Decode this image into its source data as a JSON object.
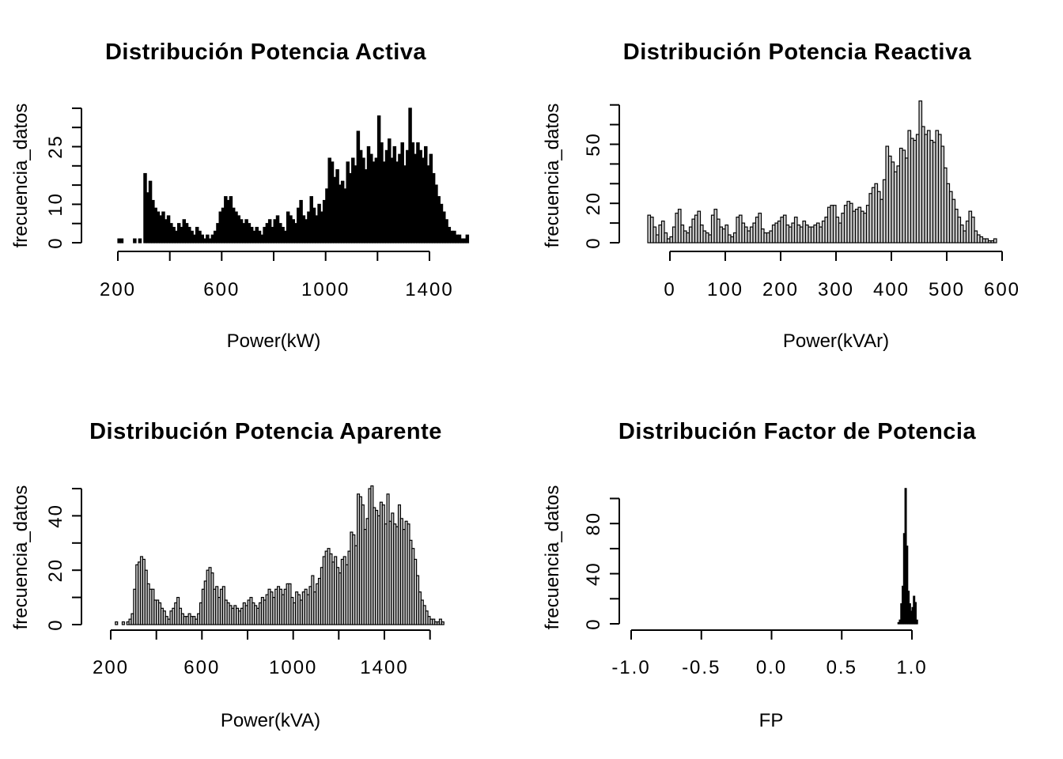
{
  "figure": {
    "background": "#ffffff",
    "text_color": "#000000",
    "layout": "2x2 grid of base-R histograms, no gridlines, no legend"
  },
  "chart_data": [
    {
      "id": "potencia-activa",
      "type": "bar",
      "subtype": "histogram",
      "title": "Distribución Potencia Activa",
      "xlabel": "Power(kW)",
      "ylabel": "frecuencia_datos",
      "bar_fill": "#000000",
      "bar_stroke": "#000000",
      "xlim": [
        200,
        1550
      ],
      "ylim": [
        0,
        35
      ],
      "grid": false,
      "legend": false,
      "x_ticks": {
        "values": [
          200,
          400,
          600,
          800,
          1000,
          1200,
          1400
        ],
        "labels": [
          "200",
          "",
          "600",
          "",
          "1000",
          "",
          "1400"
        ]
      },
      "y_ticks": {
        "values": [
          0,
          5,
          10,
          15,
          20,
          25,
          30,
          35
        ],
        "labels": [
          "0",
          "",
          "10",
          "",
          "",
          "25",
          "",
          ""
        ]
      },
      "bin_start": 200,
      "bin_width": 10,
      "counts": [
        1,
        1,
        0,
        0,
        0,
        0,
        1,
        0,
        1,
        0,
        18,
        13,
        16,
        11,
        9,
        8,
        7,
        8,
        6,
        7,
        5,
        4,
        3,
        5,
        4,
        6,
        5,
        4,
        3,
        2,
        4,
        3,
        2,
        1,
        2,
        1,
        2,
        3,
        5,
        8,
        9,
        12,
        11,
        12,
        9,
        8,
        7,
        6,
        5,
        6,
        5,
        4,
        3,
        4,
        3,
        2,
        4,
        5,
        6,
        4,
        6,
        7,
        5,
        4,
        3,
        8,
        7,
        6,
        5,
        9,
        11,
        7,
        6,
        8,
        12,
        9,
        7,
        10,
        8,
        11,
        14,
        22,
        21,
        17,
        19,
        15,
        16,
        14,
        21,
        18,
        22,
        20,
        29,
        24,
        22,
        19,
        25,
        23,
        21,
        22,
        33,
        26,
        21,
        24,
        27,
        22,
        25,
        21,
        23,
        26,
        20,
        24,
        35,
        26,
        23,
        26,
        24,
        22,
        25,
        20,
        23,
        18,
        15,
        12,
        10,
        8,
        6,
        4,
        3,
        3,
        2,
        2,
        1,
        1,
        2
      ]
    },
    {
      "id": "potencia-reactiva",
      "type": "bar",
      "subtype": "histogram",
      "title": "Distribución Potencia Reactiva",
      "xlabel": "Power(kVAr)",
      "ylabel": "frecuencia_datos",
      "bar_fill": "#d3d3d3",
      "bar_stroke": "#000000",
      "xlim": [
        -40,
        590
      ],
      "ylim": [
        0,
        72
      ],
      "grid": false,
      "legend": false,
      "x_ticks": {
        "values": [
          0,
          100,
          200,
          300,
          400,
          500,
          600
        ],
        "labels": [
          "0",
          "100",
          "200",
          "300",
          "400",
          "500",
          "600"
        ]
      },
      "y_ticks": {
        "values": [
          0,
          10,
          20,
          30,
          40,
          50,
          60,
          70
        ],
        "labels": [
          "0",
          "",
          "20",
          "",
          "",
          "50",
          "",
          ""
        ]
      },
      "bin_start": -40,
      "bin_width": 5,
      "counts": [
        14,
        13,
        8,
        4,
        9,
        11,
        5,
        2,
        3,
        8,
        15,
        17,
        9,
        6,
        5,
        8,
        12,
        14,
        16,
        9,
        6,
        5,
        4,
        14,
        17,
        12,
        8,
        7,
        9,
        4,
        3,
        5,
        13,
        14,
        10,
        8,
        6,
        8,
        10,
        13,
        15,
        7,
        5,
        5,
        6,
        9,
        10,
        11,
        13,
        14,
        9,
        8,
        10,
        13,
        9,
        8,
        11,
        9,
        8,
        8,
        9,
        10,
        8,
        11,
        13,
        18,
        19,
        19,
        13,
        10,
        15,
        19,
        21,
        20,
        16,
        17,
        18,
        16,
        15,
        19,
        25,
        28,
        30,
        26,
        22,
        32,
        49,
        44,
        41,
        36,
        39,
        48,
        47,
        43,
        57,
        53,
        52,
        55,
        72,
        59,
        55,
        57,
        52,
        51,
        57,
        55,
        49,
        38,
        30,
        26,
        22,
        17,
        13,
        9,
        6,
        11,
        16,
        13,
        6,
        4,
        3,
        2,
        2,
        1,
        1,
        2
      ]
    },
    {
      "id": "potencia-aparente",
      "type": "bar",
      "subtype": "histogram",
      "title": "Distribución Potencia Aparente",
      "xlabel": "Power(kVA)",
      "ylabel": "frecuencia_datos",
      "bar_fill": "#d3d3d3",
      "bar_stroke": "#000000",
      "xlim": [
        220,
        1680
      ],
      "ylim": [
        0,
        51
      ],
      "grid": false,
      "legend": false,
      "x_ticks": {
        "values": [
          200,
          400,
          600,
          800,
          1000,
          1200,
          1400,
          1600
        ],
        "labels": [
          "200",
          "",
          "600",
          "",
          "1000",
          "",
          "1400",
          ""
        ]
      },
      "y_ticks": {
        "values": [
          0,
          10,
          20,
          30,
          40,
          50
        ],
        "labels": [
          "0",
          "",
          "20",
          "",
          "40",
          ""
        ]
      },
      "bin_start": 220,
      "bin_width": 10,
      "counts": [
        1,
        0,
        0,
        1,
        0,
        1,
        2,
        4,
        13,
        22,
        23,
        25,
        24,
        20,
        15,
        13,
        13,
        9,
        9,
        8,
        6,
        5,
        3,
        2,
        5,
        6,
        8,
        10,
        6,
        4,
        3,
        3,
        4,
        3,
        3,
        2,
        4,
        8,
        13,
        16,
        20,
        21,
        19,
        13,
        14,
        10,
        13,
        14,
        9,
        8,
        7,
        6,
        7,
        6,
        5,
        6,
        8,
        7,
        9,
        10,
        8,
        7,
        6,
        8,
        10,
        9,
        11,
        13,
        12,
        10,
        13,
        14,
        13,
        11,
        13,
        15,
        15,
        10,
        8,
        12,
        11,
        9,
        12,
        13,
        11,
        14,
        18,
        12,
        15,
        17,
        21,
        25,
        27,
        28,
        26,
        23,
        25,
        21,
        19,
        24,
        25,
        22,
        27,
        34,
        33,
        29,
        48,
        47,
        44,
        35,
        39,
        50,
        51,
        43,
        42,
        40,
        45,
        44,
        37,
        48,
        38,
        41,
        37,
        36,
        44,
        39,
        35,
        38,
        37,
        31,
        28,
        24,
        18,
        12,
        9,
        7,
        5,
        3,
        2,
        2,
        1,
        1,
        2,
        1
      ]
    },
    {
      "id": "factor-de-potencia",
      "type": "bar",
      "subtype": "histogram",
      "title": "Distribución Factor de Potencia",
      "xlabel": "FP",
      "ylabel": "frecuencia_datos",
      "bar_fill": "#000000",
      "bar_stroke": "#000000",
      "xlim": [
        -1.0,
        1.0
      ],
      "ylim": [
        0,
        108
      ],
      "grid": false,
      "legend": false,
      "x_ticks": {
        "values": [
          -1.0,
          -0.5,
          0.0,
          0.5,
          1.0
        ],
        "labels": [
          "-1.0",
          "-0.5",
          "0.0",
          "0.5",
          "1.0"
        ]
      },
      "y_ticks": {
        "values": [
          0,
          20,
          40,
          60,
          80,
          100
        ],
        "labels": [
          "0",
          "",
          "40",
          "",
          "80",
          ""
        ]
      },
      "bin_start": 0.9,
      "bin_width": 0.01,
      "counts": [
        1,
        3,
        16,
        30,
        72,
        108,
        62,
        26,
        16,
        10,
        13,
        22,
        17,
        3
      ]
    }
  ]
}
